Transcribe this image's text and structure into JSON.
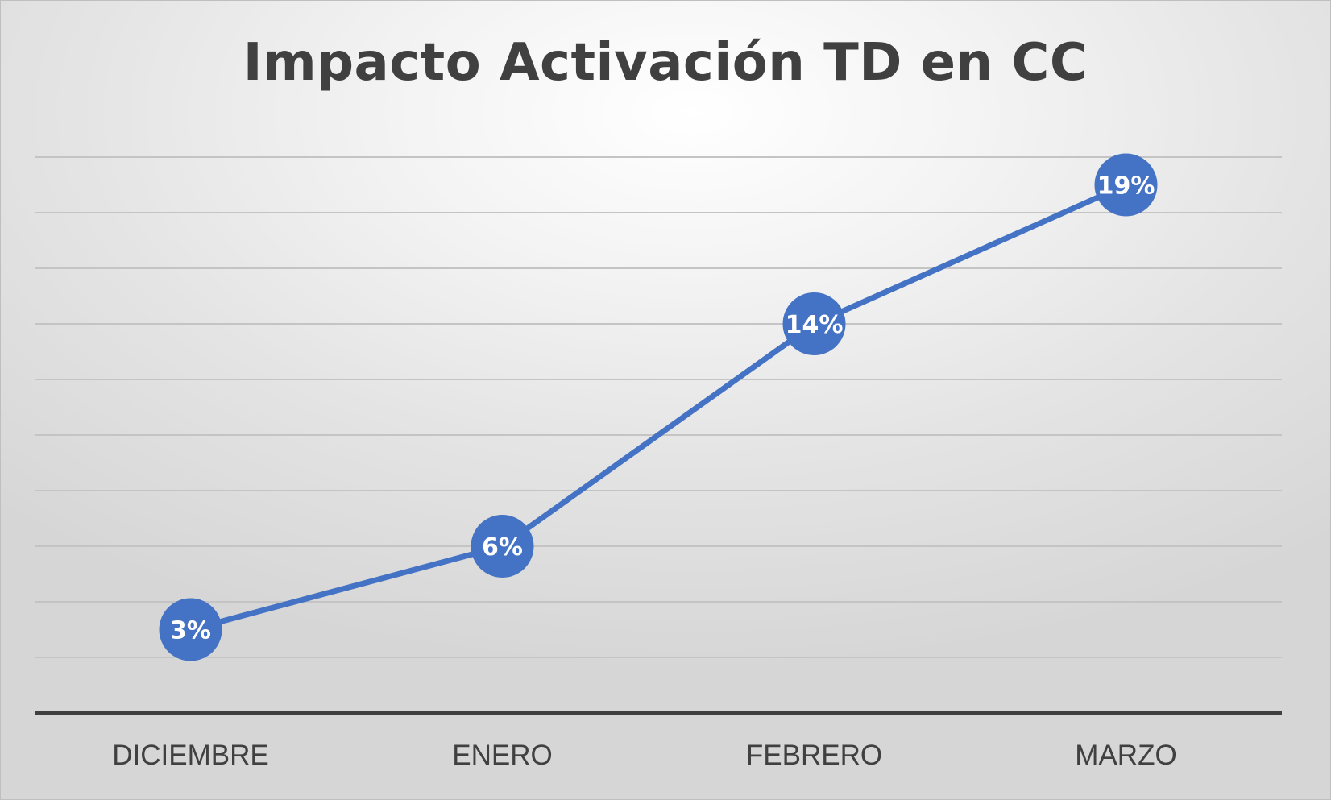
{
  "chart_data": {
    "type": "line",
    "title": "Impacto Activación TD en CC",
    "xlabel": "",
    "ylabel": "",
    "categories": [
      "DICIEMBRE",
      "ENERO",
      "FEBRERO",
      "MARZO"
    ],
    "series": [
      {
        "values": [
          3,
          6,
          14,
          19
        ],
        "labels": [
          "3%",
          "6%",
          "14%",
          "19%"
        ],
        "color": "#4472c4"
      }
    ],
    "ylim": [
      0,
      20
    ],
    "ytick_step": 2,
    "grid": true,
    "legend": "none"
  }
}
